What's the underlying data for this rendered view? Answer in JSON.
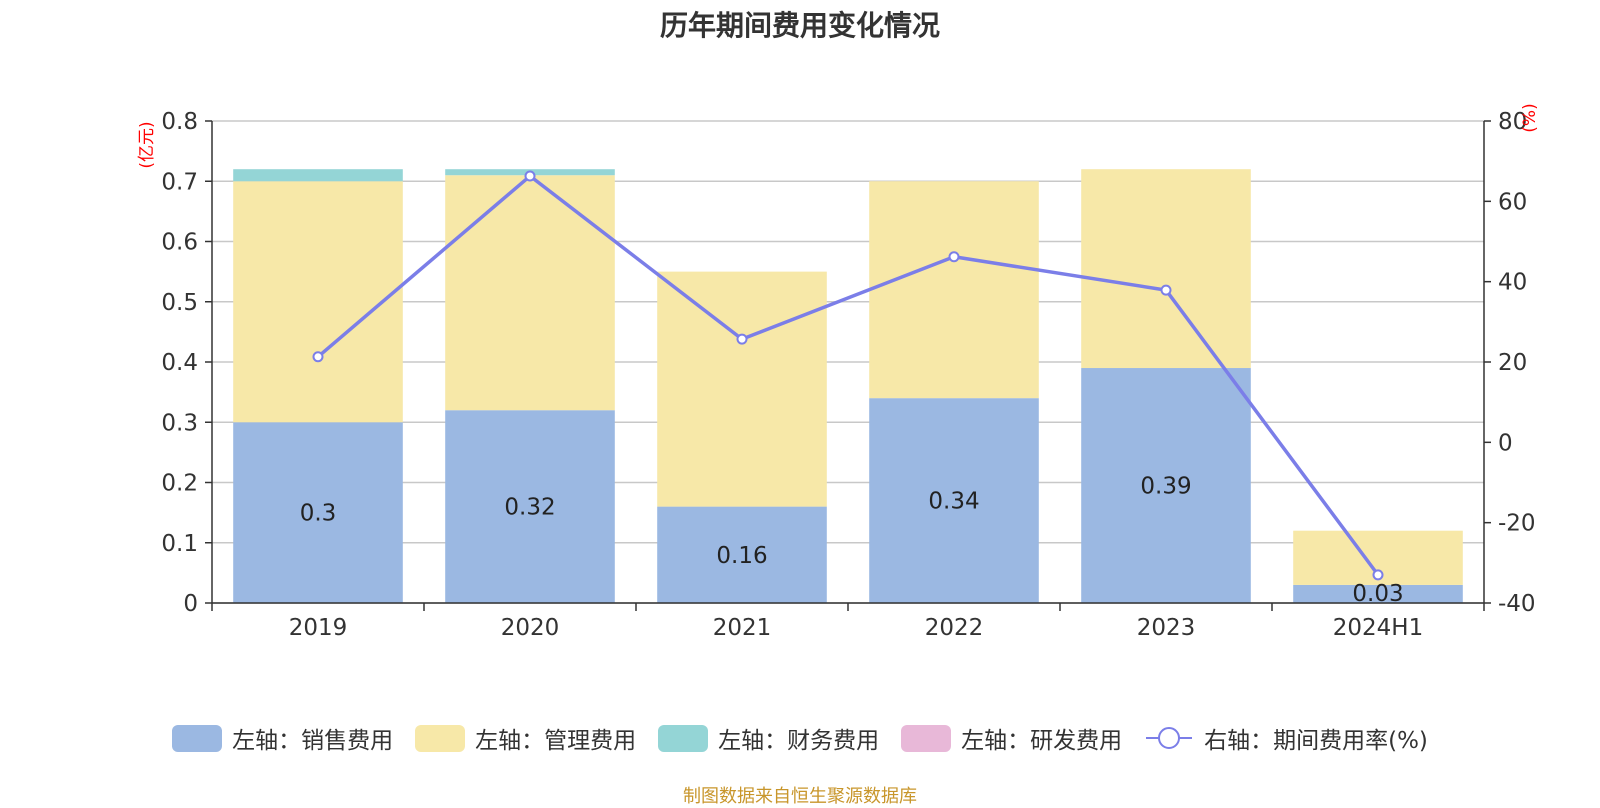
{
  "chart_data": {
    "type": "bar",
    "title": "历年期间费用变化情况",
    "categories": [
      "2019",
      "2020",
      "2021",
      "2022",
      "2023",
      "2024H1"
    ],
    "left_axis": {
      "unit_label": "(亿元)",
      "ylim": [
        0,
        0.8
      ],
      "ticks": [
        "0",
        "0.1",
        "0.2",
        "0.3",
        "0.4",
        "0.5",
        "0.6",
        "0.7",
        "0.8"
      ]
    },
    "right_axis": {
      "unit_label": "(%)",
      "ylim": [
        -40,
        80
      ],
      "ticks": [
        "-40",
        "-20",
        "0",
        "20",
        "40",
        "60",
        "80"
      ]
    },
    "grid": true,
    "legend_position": "bottom",
    "series": [
      {
        "name": "左轴：销售费用",
        "axis": "left",
        "type": "bar",
        "color": "#9bb8e2",
        "values": [
          0.3,
          0.32,
          0.16,
          0.34,
          0.39,
          0.03
        ],
        "labels": [
          "0.3",
          "0.32",
          "0.16",
          "0.34",
          "0.39",
          "0.03"
        ]
      },
      {
        "name": "左轴：管理费用",
        "axis": "left",
        "type": "bar",
        "color": "#f7e8a8",
        "values": [
          0.4,
          0.39,
          0.39,
          0.36,
          0.33,
          0.09
        ]
      },
      {
        "name": "左轴：财务费用",
        "axis": "left",
        "type": "bar",
        "color": "#94d5d6",
        "values": [
          0.02,
          0.01,
          0,
          0,
          0,
          0
        ]
      },
      {
        "name": "左轴：研发费用",
        "axis": "left",
        "type": "bar",
        "color": "#e8b8d8",
        "values": [
          0,
          0,
          0,
          0,
          0,
          0
        ]
      },
      {
        "name": "右轴：期间费用率(%)",
        "axis": "right",
        "type": "line",
        "color": "#7b7ee8",
        "values": [
          21.3,
          66.3,
          25.7,
          46.2,
          37.9,
          -33
        ]
      }
    ]
  },
  "source_note": "制图数据来自恒生聚源数据库"
}
